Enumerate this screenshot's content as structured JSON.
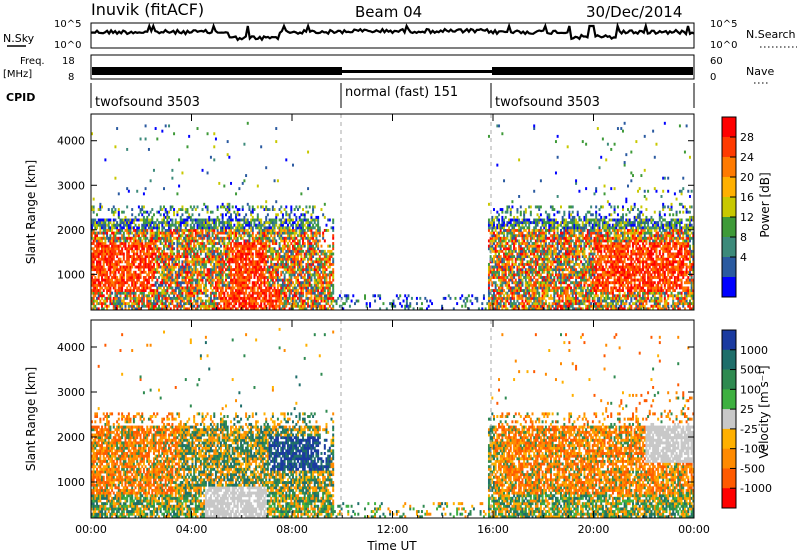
{
  "header": {
    "station": "Inuvik (fitACF)",
    "beam": "Beam 04",
    "date": "30/Dec/2014"
  },
  "panels": {
    "nsky_label": "N.Sky",
    "nsky_ticks": [
      "10^5",
      "10^0"
    ],
    "nsearch_label": "N.Search",
    "nsearch_ticks": [
      "10^5",
      "10^0"
    ],
    "freq_label_1": "Freq.",
    "freq_label_2": "[MHz]",
    "freq_ticks": [
      "18",
      "8"
    ],
    "nave_label": "Nave",
    "nave_ticks": [
      "60",
      "0"
    ],
    "cpid_label": "CPID",
    "cpid_segments": [
      {
        "name": "twofsound 3503",
        "start_h": 0,
        "end_h": 10
      },
      {
        "name": "normal (fast) 151",
        "start_h": 10,
        "end_h": 16
      },
      {
        "name": "twofsound 3503",
        "start_h": 16,
        "end_h": 24
      }
    ]
  },
  "chart_data": [
    {
      "type": "heatmap",
      "title": "",
      "xlabel": "",
      "ylabel": "Slant Range [km]",
      "yticks": [
        "4000",
        "3000",
        "2000",
        "1000"
      ],
      "ylim": [
        200,
        4600
      ],
      "xlim_hours": [
        0,
        24
      ],
      "colorbar_label": "Power [dB]",
      "colorbar_ticks": [
        "28",
        "24",
        "20",
        "16",
        "12",
        "8",
        "4"
      ],
      "colors": [
        "#ff0000",
        "#ff3a00",
        "#ff7a00",
        "#ffb000",
        "#c8c800",
        "#3e9a38",
        "#3c8a7a",
        "#2a5aa0",
        "#0000ff"
      ]
    },
    {
      "type": "heatmap",
      "title": "",
      "xlabel": "Time UT",
      "ylabel": "Slant Range [km]",
      "yticks": [
        "4000",
        "3000",
        "2000",
        "1000"
      ],
      "ylim": [
        200,
        4600
      ],
      "xlim_hours": [
        0,
        24
      ],
      "xticks": [
        "00:00",
        "04:00",
        "08:00",
        "12:00",
        "16:00",
        "20:00",
        "00:00"
      ],
      "colorbar_label": "Velocity [m s⁻¹]",
      "colorbar_ticks": [
        "1000",
        "500",
        "100",
        "25",
        "-25",
        "-100",
        "-500",
        "-1000"
      ],
      "colors": [
        "#1a3aa0",
        "#1e6e6a",
        "#2e8a50",
        "#3eb040",
        "#c8c8c8",
        "#ffb000",
        "#ff8a00",
        "#ff5a00",
        "#ff0000"
      ]
    }
  ]
}
